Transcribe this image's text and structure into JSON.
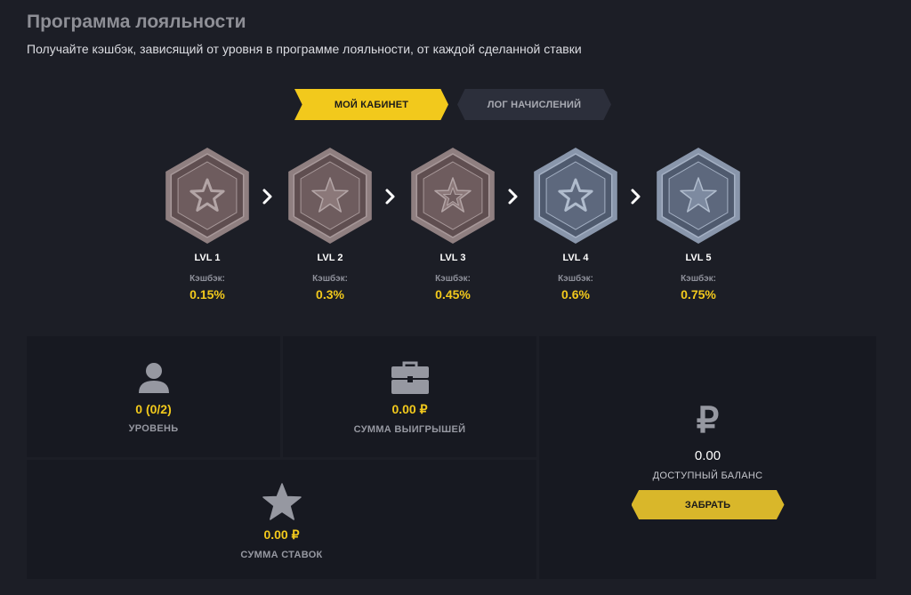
{
  "page": {
    "title": "Программа лояльности",
    "subtitle": "Получайте кэшбэк, зависящий от уровня в программе лояльности, от каждой сделанной ставки"
  },
  "tabs": [
    {
      "label": "МОЙ КАБИНЕТ",
      "active": true
    },
    {
      "label": "ЛОГ НАЧИСЛЕНИЙ",
      "active": false
    }
  ],
  "levels": [
    {
      "name": "LVL 1",
      "cashback_label": "Кэшбэк:",
      "cashback": "0.15%",
      "tier": "bronze",
      "star": "outline"
    },
    {
      "name": "LVL 2",
      "cashback_label": "Кэшбэк:",
      "cashback": "0.3%",
      "tier": "bronze",
      "star": "filled"
    },
    {
      "name": "LVL 3",
      "cashback_label": "Кэшбэк:",
      "cashback": "0.45%",
      "tier": "bronze",
      "star": "double"
    },
    {
      "name": "LVL 4",
      "cashback_label": "Кэшбэк:",
      "cashback": "0.6%",
      "tier": "silver",
      "star": "outline"
    },
    {
      "name": "LVL 5",
      "cashback_label": "Кэшбэк:",
      "cashback": "0.75%",
      "tier": "silver",
      "star": "filled"
    }
  ],
  "stats": {
    "level": {
      "value": "0 (0/2)",
      "label": "УРОВЕНЬ",
      "icon": "user-icon"
    },
    "winnings": {
      "value": "0.00 ₽",
      "label": "СУММА ВЫИГРЫШЕЙ",
      "icon": "briefcase-icon"
    },
    "bets": {
      "value": "0.00 ₽",
      "label": "СУММА СТАВОК",
      "icon": "star-icon"
    }
  },
  "balance": {
    "currency_symbol": "₽",
    "value": "0.00",
    "label": "ДОСТУПНЫЙ БАЛАНС",
    "button_label": "ЗАБРАТЬ"
  },
  "colors": {
    "accent": "#f2c91c",
    "background": "#1c1e26",
    "panel": "#171921",
    "bronze": "#7a6668",
    "silver": "#7a8598"
  }
}
